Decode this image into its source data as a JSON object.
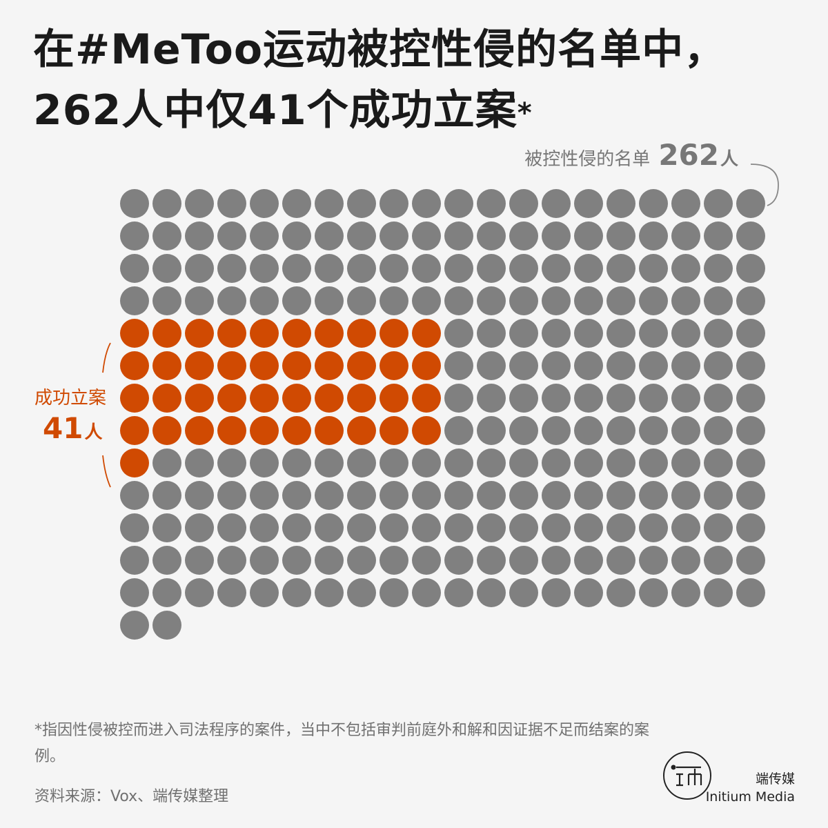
{
  "title": {
    "line1": "在#MeToo运动被控性侵的名单中，",
    "line2": "262人中仅41个成功立案",
    "asterisk": "*"
  },
  "total": {
    "label": "被控性侵的名单",
    "number": "262",
    "unit": "人"
  },
  "highlight": {
    "label": "成功立案",
    "number": "41",
    "unit": "人"
  },
  "footnote": "*指因性侵被控而进入司法程序的案件，当中不包括审判前庭外和解和因证据不足而结案的案例。",
  "source": "资料来源：Vox、端传媒整理",
  "brand": {
    "name_cn": "端传媒",
    "name_en": "Initium Media",
    "logo_icon": "initium-logo-icon"
  },
  "colors": {
    "background": "#f5f5f5",
    "default_dot": "#808080",
    "highlight_dot": "#d04a02"
  },
  "chart_data": {
    "type": "waffle",
    "total": 262,
    "highlighted": 41,
    "columns": 20,
    "highlight_block": {
      "start_row": 4,
      "columns": 10
    },
    "categories": [
      "成功立案",
      "被控性侵的名单"
    ],
    "values": [
      41,
      262
    ]
  }
}
